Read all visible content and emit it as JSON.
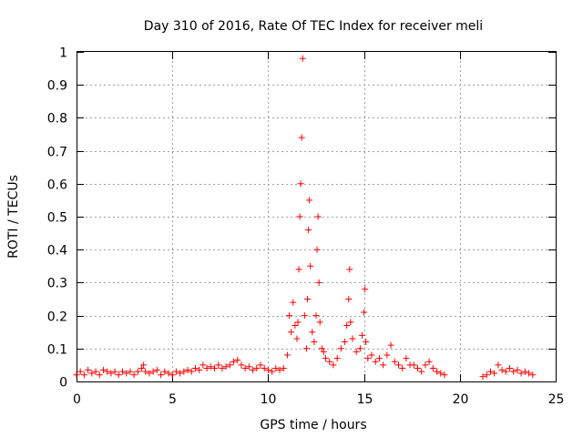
{
  "chart_data": {
    "type": "scatter",
    "title": "Day 310 of 2016, Rate Of TEC Index for receiver meli",
    "xlabel": "GPS time / hours",
    "ylabel": "ROTI / TECUs",
    "xlim": [
      0,
      25
    ],
    "ylim": [
      0,
      1
    ],
    "xticks": [
      "0",
      "5",
      "10",
      "15",
      "20",
      "25"
    ],
    "yticks": [
      "0",
      "0.1",
      "0.2",
      "0.3",
      "0.4",
      "0.5",
      "0.6",
      "0.7",
      "0.8",
      "0.9",
      "1"
    ],
    "grid": true,
    "marker": "+",
    "color": "#ff0000",
    "series": [
      {
        "name": "ROTI",
        "x": [
          0.0,
          0.2,
          0.4,
          0.6,
          0.8,
          1.0,
          1.2,
          1.4,
          1.6,
          1.8,
          2.0,
          2.2,
          2.4,
          2.6,
          2.8,
          3.0,
          3.2,
          3.4,
          3.5,
          3.6,
          3.8,
          4.0,
          4.2,
          4.4,
          4.6,
          4.8,
          5.0,
          5.2,
          5.4,
          5.6,
          5.8,
          6.0,
          6.2,
          6.4,
          6.6,
          6.8,
          7.0,
          7.2,
          7.4,
          7.6,
          7.8,
          8.0,
          8.2,
          8.4,
          8.6,
          8.8,
          9.0,
          9.2,
          9.4,
          9.6,
          9.8,
          10.0,
          10.2,
          10.4,
          10.6,
          10.8,
          11.0,
          11.1,
          11.2,
          11.3,
          11.4,
          11.5,
          11.55,
          11.6,
          11.65,
          11.7,
          11.75,
          11.8,
          11.9,
          12.0,
          12.05,
          12.1,
          12.15,
          12.2,
          12.3,
          12.4,
          12.5,
          12.55,
          12.6,
          12.65,
          12.7,
          12.8,
          12.9,
          13.0,
          13.2,
          13.4,
          13.6,
          13.8,
          14.0,
          14.1,
          14.2,
          14.25,
          14.3,
          14.4,
          14.6,
          14.8,
          14.9,
          15.0,
          15.05,
          15.1,
          15.2,
          15.4,
          15.6,
          15.8,
          16.0,
          16.2,
          16.4,
          16.6,
          16.8,
          17.0,
          17.2,
          17.4,
          17.6,
          17.8,
          18.0,
          18.2,
          18.4,
          18.6,
          18.8,
          19.0,
          19.2,
          21.2,
          21.4,
          21.6,
          21.8,
          22.0,
          22.2,
          22.4,
          22.6,
          22.8,
          23.0,
          23.2,
          23.4,
          23.6,
          23.8
        ],
        "y": [
          0.02,
          0.03,
          0.02,
          0.035,
          0.025,
          0.03,
          0.02,
          0.035,
          0.03,
          0.025,
          0.03,
          0.02,
          0.03,
          0.025,
          0.03,
          0.02,
          0.03,
          0.04,
          0.05,
          0.03,
          0.025,
          0.03,
          0.035,
          0.02,
          0.03,
          0.025,
          0.02,
          0.03,
          0.025,
          0.03,
          0.035,
          0.03,
          0.04,
          0.035,
          0.05,
          0.04,
          0.045,
          0.04,
          0.05,
          0.04,
          0.045,
          0.05,
          0.06,
          0.065,
          0.05,
          0.04,
          0.045,
          0.035,
          0.04,
          0.05,
          0.04,
          0.035,
          0.03,
          0.04,
          0.035,
          0.04,
          0.08,
          0.2,
          0.15,
          0.24,
          0.17,
          0.13,
          0.18,
          0.34,
          0.5,
          0.6,
          0.74,
          0.98,
          0.2,
          0.1,
          0.25,
          0.46,
          0.55,
          0.35,
          0.15,
          0.12,
          0.2,
          0.4,
          0.5,
          0.3,
          0.18,
          0.1,
          0.09,
          0.07,
          0.06,
          0.05,
          0.07,
          0.1,
          0.12,
          0.17,
          0.25,
          0.34,
          0.18,
          0.13,
          0.09,
          0.1,
          0.14,
          0.21,
          0.28,
          0.12,
          0.07,
          0.08,
          0.06,
          0.07,
          0.05,
          0.08,
          0.11,
          0.06,
          0.05,
          0.04,
          0.07,
          0.05,
          0.05,
          0.04,
          0.03,
          0.05,
          0.06,
          0.04,
          0.03,
          0.025,
          0.02,
          0.015,
          0.02,
          0.03,
          0.025,
          0.05,
          0.035,
          0.03,
          0.04,
          0.03,
          0.035,
          0.025,
          0.03,
          0.025,
          0.02
        ]
      }
    ]
  }
}
